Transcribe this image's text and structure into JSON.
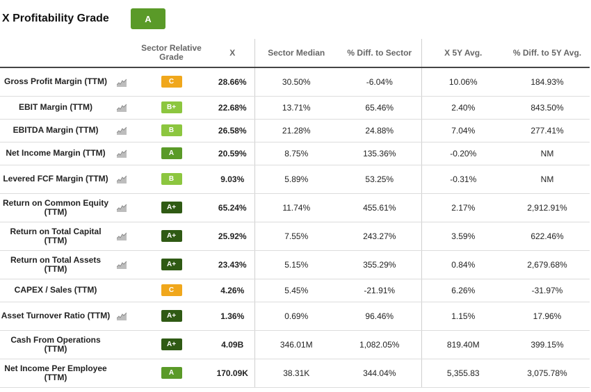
{
  "header": {
    "title": "X Profitability Grade",
    "overall_grade": "A"
  },
  "columns": {
    "metric": "",
    "chart": "",
    "grade": "Sector Relative Grade",
    "x": "X",
    "sector_median": "Sector Median",
    "diff_sector": "% Diff. to Sector",
    "x_5y": "X 5Y Avg.",
    "diff_5y": "% Diff. to 5Y Avg."
  },
  "rows": [
    {
      "metric": "Gross Profit Margin (TTM)",
      "chart": true,
      "grade": "C",
      "x": "28.66%",
      "sector_median": "30.50%",
      "diff_sector": "-6.04%",
      "x_5y": "10.06%",
      "diff_5y": "184.93%"
    },
    {
      "metric": "EBIT Margin (TTM)",
      "chart": true,
      "grade": "B+",
      "x": "22.68%",
      "sector_median": "13.71%",
      "diff_sector": "65.46%",
      "x_5y": "2.40%",
      "diff_5y": "843.50%"
    },
    {
      "metric": "EBITDA Margin (TTM)",
      "chart": true,
      "grade": "B",
      "x": "26.58%",
      "sector_median": "21.28%",
      "diff_sector": "24.88%",
      "x_5y": "7.04%",
      "diff_5y": "277.41%"
    },
    {
      "metric": "Net Income Margin (TTM)",
      "chart": true,
      "grade": "A",
      "x": "20.59%",
      "sector_median": "8.75%",
      "diff_sector": "135.36%",
      "x_5y": "-0.20%",
      "diff_5y": "NM"
    },
    {
      "metric": "Levered FCF Margin (TTM)",
      "chart": true,
      "grade": "B",
      "x": "9.03%",
      "sector_median": "5.89%",
      "diff_sector": "53.25%",
      "x_5y": "-0.31%",
      "diff_5y": "NM"
    },
    {
      "metric": "Return on Common Equity (TTM)",
      "chart": true,
      "grade": "A+",
      "x": "65.24%",
      "sector_median": "11.74%",
      "diff_sector": "455.61%",
      "x_5y": "2.17%",
      "diff_5y": "2,912.91%"
    },
    {
      "metric": "Return on Total Capital (TTM)",
      "chart": true,
      "grade": "A+",
      "x": "25.92%",
      "sector_median": "7.55%",
      "diff_sector": "243.27%",
      "x_5y": "3.59%",
      "diff_5y": "622.46%"
    },
    {
      "metric": "Return on Total Assets (TTM)",
      "chart": true,
      "grade": "A+",
      "x": "23.43%",
      "sector_median": "5.15%",
      "diff_sector": "355.29%",
      "x_5y": "0.84%",
      "diff_5y": "2,679.68%"
    },
    {
      "metric": "CAPEX / Sales (TTM)",
      "chart": false,
      "grade": "C",
      "x": "4.26%",
      "sector_median": "5.45%",
      "diff_sector": "-21.91%",
      "x_5y": "6.26%",
      "diff_5y": "-31.97%"
    },
    {
      "metric": "Asset Turnover Ratio (TTM)",
      "chart": true,
      "grade": "A+",
      "x": "1.36%",
      "sector_median": "0.69%",
      "diff_sector": "96.46%",
      "x_5y": "1.15%",
      "diff_5y": "17.96%"
    },
    {
      "metric": "Cash From Operations (TTM)",
      "chart": false,
      "grade": "A+",
      "x": "4.09B",
      "sector_median": "346.01M",
      "diff_sector": "1,082.05%",
      "x_5y": "819.40M",
      "diff_5y": "399.15%"
    },
    {
      "metric": "Net Income Per Employee (TTM)",
      "chart": false,
      "grade": "A",
      "x": "170.09K",
      "sector_median": "38.31K",
      "diff_sector": "344.04%",
      "x_5y": "5,355.83",
      "diff_5y": "3,075.78%"
    }
  ],
  "grade_colors": {
    "C": "#f0a71c",
    "B+": "#8cc63f",
    "B": "#8cc63f",
    "A": "#5a9a28",
    "A+": "#2f5a14"
  },
  "icons": {
    "chart": "area-chart-icon"
  }
}
